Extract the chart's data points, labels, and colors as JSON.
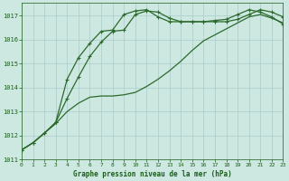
{
  "xlabel": "Graphe pression niveau de la mer (hPa)",
  "hours": [
    0,
    1,
    2,
    3,
    4,
    5,
    6,
    7,
    8,
    9,
    10,
    11,
    12,
    13,
    14,
    15,
    16,
    17,
    18,
    19,
    20,
    21,
    22,
    23
  ],
  "line1": [
    1011.4,
    1011.7,
    1012.1,
    1012.5,
    1013.0,
    1013.35,
    1013.6,
    1013.65,
    1013.65,
    1013.7,
    1013.8,
    1014.05,
    1014.35,
    1014.7,
    1015.1,
    1015.55,
    1015.95,
    1016.2,
    1016.45,
    1016.7,
    1016.95,
    1017.05,
    1016.9,
    1016.7
  ],
  "line2": [
    1011.4,
    1011.7,
    1012.1,
    1012.55,
    1013.55,
    1014.45,
    1015.3,
    1015.9,
    1016.35,
    1016.4,
    1017.05,
    1017.2,
    1017.15,
    1016.9,
    1016.75,
    1016.75,
    1016.75,
    1016.75,
    1016.75,
    1016.85,
    1017.05,
    1017.25,
    1017.15,
    1016.95
  ],
  "line3": [
    1011.4,
    1011.7,
    1012.1,
    1012.55,
    1014.35,
    1015.25,
    1015.85,
    1016.35,
    1016.4,
    1017.05,
    1017.2,
    1017.25,
    1016.95,
    1016.75,
    1016.75,
    1016.75,
    1016.75,
    1016.8,
    1016.85,
    1017.05,
    1017.25,
    1017.15,
    1016.95,
    1016.65
  ],
  "line_color": "#2d6a2d",
  "bg_color": "#cce8e0",
  "grid_color": "#aacccc",
  "text_color": "#1a5c1a",
  "ylim": [
    1011.0,
    1017.55
  ],
  "yticks": [
    1011,
    1012,
    1013,
    1014,
    1015,
    1016,
    1017
  ],
  "xlim": [
    0,
    23
  ],
  "xticks": [
    0,
    1,
    2,
    3,
    4,
    5,
    6,
    7,
    8,
    9,
    10,
    11,
    12,
    13,
    14,
    15,
    16,
    17,
    18,
    19,
    20,
    21,
    22,
    23
  ]
}
